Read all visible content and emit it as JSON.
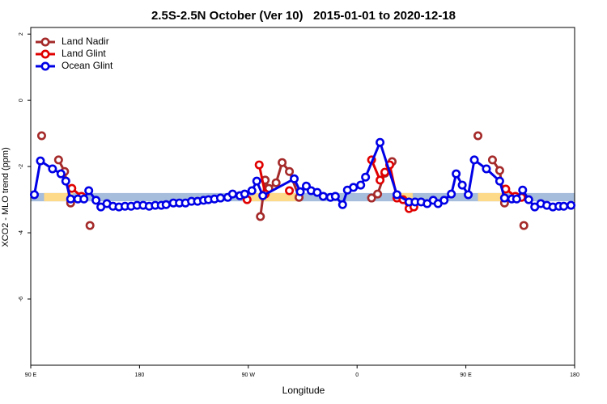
{
  "chart_data": {
    "type": "line",
    "title": "2.5S-2.5N October (Ver 10)   2015-01-01 to 2020-12-18",
    "x_label": "Longitude",
    "y_label": "XCO2 - MLO trend (ppm)",
    "xlim": [
      90,
      540
    ],
    "ylim": [
      -8,
      2.2
    ],
    "xticks": [
      {
        "value": 90,
        "label": "90 E"
      },
      {
        "value": 180,
        "label": "180"
      },
      {
        "value": 270,
        "label": "90 W"
      },
      {
        "value": 360,
        "label": "0"
      },
      {
        "value": 450,
        "label": "90 E"
      },
      {
        "value": 540,
        "label": "180"
      }
    ],
    "yticks": [
      -6,
      -4,
      -2,
      0,
      2
    ],
    "legend": "top-left",
    "band": {
      "ylim": [
        -3.05,
        -2.8
      ],
      "color": "#a6bddb",
      "highlight_color": "#fdd98a",
      "highlights": [
        [
          101,
          125
        ],
        [
          272,
          312
        ],
        [
          396,
          406
        ],
        [
          460,
          480
        ]
      ]
    },
    "series": [
      {
        "name": "Land Nadir",
        "color": "#a52a2a",
        "x": [
          99,
          null,
          113,
          118,
          123,
          null,
          139,
          null,
          280,
          284,
          287,
          293,
          298,
          304,
          312,
          null,
          372,
          377,
          383,
          389,
          null,
          460,
          null,
          472,
          478,
          482,
          null,
          498
        ],
        "values": [
          -1.07,
          null,
          -1.8,
          -2.15,
          -3.1,
          null,
          -3.78,
          null,
          -3.51,
          -2.41,
          -2.66,
          -2.49,
          -1.88,
          -2.15,
          -2.93,
          null,
          -2.95,
          -2.83,
          -2.2,
          -1.85,
          null,
          -1.07,
          null,
          -1.8,
          -2.12,
          -3.1,
          null,
          -3.78
        ]
      },
      {
        "name": "Land Glint",
        "color": "#e00000",
        "x": [
          124,
          132,
          null,
          269,
          null,
          279,
          284,
          null,
          304,
          null,
          372,
          379,
          383,
          387,
          393,
          398,
          403,
          407,
          null,
          483,
          491,
          496
        ],
        "values": [
          -2.66,
          -2.9,
          null,
          -3.0,
          null,
          -1.95,
          -2.83,
          null,
          -2.73,
          null,
          -1.8,
          -2.41,
          -2.17,
          -1.95,
          -2.95,
          -3.0,
          -3.27,
          -3.22,
          null,
          -2.68,
          -2.9,
          -2.93
        ]
      },
      {
        "name": "Ocean Glint",
        "color": "#0000e6",
        "x": [
          93,
          98,
          108,
          115,
          119,
          123,
          129,
          134,
          138,
          144,
          148,
          153,
          158,
          163,
          168,
          173,
          178,
          183,
          188,
          193,
          198,
          202,
          208,
          213,
          218,
          223,
          228,
          233,
          237,
          242,
          247,
          253,
          257,
          263,
          267,
          273,
          277,
          282,
          308,
          313,
          318,
          322,
          327,
          332,
          338,
          342,
          348,
          352,
          357,
          363,
          367,
          379,
          393,
          403,
          408,
          413,
          418,
          423,
          427,
          432,
          438,
          442,
          447,
          452,
          457,
          467,
          478,
          482,
          488,
          492,
          497,
          502,
          507,
          512,
          517,
          522,
          527,
          531,
          537
        ],
        "values": [
          -2.85,
          -1.83,
          -2.07,
          -2.22,
          -2.44,
          -2.98,
          -2.98,
          -2.98,
          -2.73,
          -3.02,
          -3.22,
          -3.12,
          -3.2,
          -3.22,
          -3.2,
          -3.2,
          -3.17,
          -3.17,
          -3.2,
          -3.17,
          -3.17,
          -3.15,
          -3.1,
          -3.1,
          -3.1,
          -3.05,
          -3.05,
          -3.02,
          -3.0,
          -2.98,
          -2.95,
          -2.93,
          -2.83,
          -2.88,
          -2.83,
          -2.73,
          -2.44,
          -2.88,
          -2.37,
          -2.76,
          -2.59,
          -2.73,
          -2.78,
          -2.9,
          -2.93,
          -2.9,
          -3.15,
          -2.71,
          -2.63,
          -2.56,
          -2.32,
          -1.27,
          -2.85,
          -3.07,
          -3.07,
          -3.07,
          -3.12,
          -3.02,
          -3.12,
          -3.02,
          -2.83,
          -2.22,
          -2.56,
          -2.85,
          -1.8,
          -2.07,
          -2.44,
          -2.95,
          -2.98,
          -2.98,
          -2.71,
          -3.0,
          -3.22,
          -3.12,
          -3.17,
          -3.22,
          -3.2,
          -3.2,
          -3.17
        ]
      }
    ]
  }
}
